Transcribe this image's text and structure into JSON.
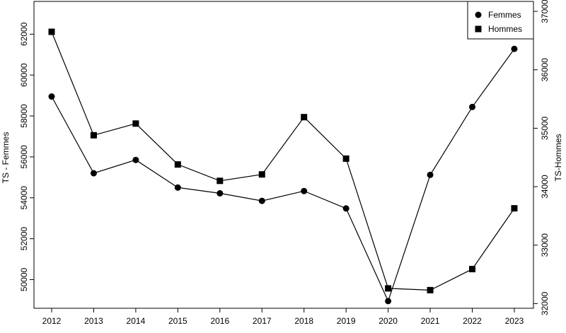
{
  "chart_data": {
    "type": "line",
    "x": [
      "2012",
      "2013",
      "2014",
      "2015",
      "2016",
      "2017",
      "2018",
      "2019",
      "2020",
      "2021",
      "2022",
      "2023"
    ],
    "series": [
      {
        "name": "Femmes",
        "axis": "left",
        "marker": "circle",
        "values": [
          58950,
          55200,
          55850,
          54500,
          54220,
          53850,
          54330,
          53480,
          48950,
          55120,
          58440,
          61280
        ]
      },
      {
        "name": "Hommes",
        "axis": "right",
        "marker": "square",
        "values": [
          36650,
          34880,
          35080,
          34380,
          34100,
          34210,
          35190,
          34480,
          32260,
          32230,
          32590,
          33630
        ]
      }
    ],
    "y_left": {
      "label": "TS - Femmes",
      "ticks": [
        50000,
        52000,
        54000,
        56000,
        58000,
        60000,
        62000
      ],
      "range": [
        48600,
        63600
      ]
    },
    "y_right": {
      "label": "TS-Hommes",
      "ticks": [
        32000,
        33000,
        34000,
        35000,
        36000,
        37000
      ],
      "range": [
        31920,
        37170
      ]
    },
    "legend": {
      "position": "top-right",
      "entries": [
        {
          "label": "Femmes",
          "marker": "circle"
        },
        {
          "label": "Hommes",
          "marker": "square"
        }
      ]
    },
    "grid": false,
    "colors": {
      "line": "#000000",
      "marker": "#000000"
    }
  }
}
